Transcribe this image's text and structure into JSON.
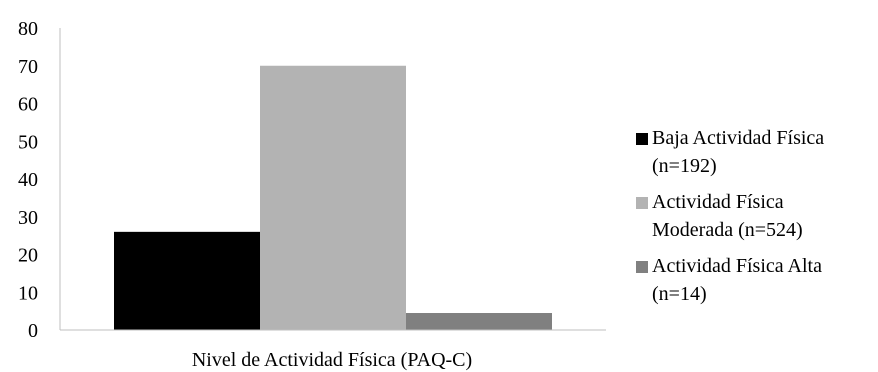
{
  "chart_data": {
    "type": "bar",
    "xlabel": "Nivel de Actividad Física (PAQ-C)",
    "ylabel": "",
    "ylim": [
      0,
      80
    ],
    "yticks": [
      0,
      10,
      20,
      30,
      40,
      50,
      60,
      70,
      80
    ],
    "grid": false,
    "legend_position": "right",
    "series": [
      {
        "name": "Baja Actividad Física (n=192)",
        "values": [
          26
        ],
        "color": "#000000"
      },
      {
        "name": "Actividad Física Moderada (n=524)",
        "values": [
          70
        ],
        "color": "#b3b3b3"
      },
      {
        "name": "Actividad Física Alta (n=14)",
        "values": [
          4.5
        ],
        "color": "#808080"
      }
    ]
  },
  "legend": [
    {
      "lines": [
        "Baja Actividad Física",
        "(n=192)"
      ],
      "color": "#000000"
    },
    {
      "lines": [
        "Actividad Física",
        "Moderada (n=524)"
      ],
      "color": "#b3b3b3"
    },
    {
      "lines": [
        "Actividad Física Alta",
        "(n=14)"
      ],
      "color": "#808080"
    }
  ]
}
